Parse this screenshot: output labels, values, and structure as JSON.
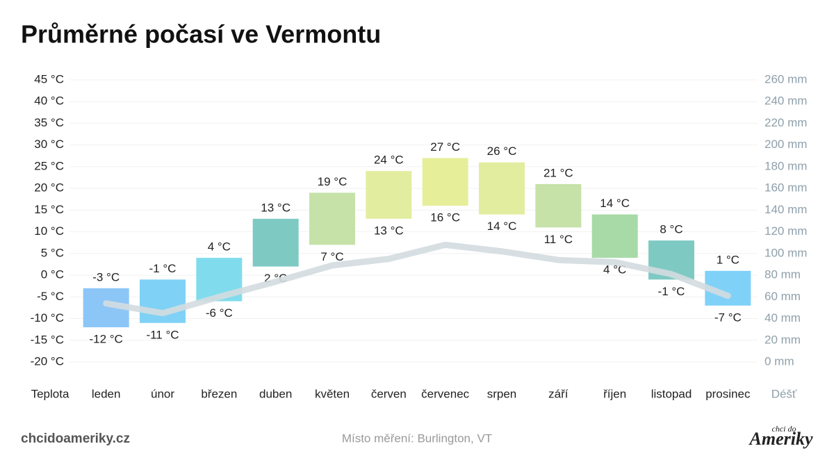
{
  "chart_data": {
    "type": "range-bar",
    "title": "Průměrné počasí ve Vermontu",
    "x_label": "Teplota",
    "y2_label": "Déšť",
    "categories": [
      "leden",
      "únor",
      "březen",
      "duben",
      "květen",
      "červen",
      "červenec",
      "srpen",
      "září",
      "říjen",
      "listopad",
      "prosinec"
    ],
    "high": {
      "values": [
        -3,
        -1,
        4,
        13,
        19,
        24,
        27,
        26,
        21,
        14,
        8,
        1
      ],
      "value_labels": [
        "-3 °C",
        "-1 °C",
        "4 °C",
        "13 °C",
        "19 °C",
        "24 °C",
        "27 °C",
        "26 °C",
        "21 °C",
        "14 °C",
        "8 °C",
        "1 °C"
      ]
    },
    "low": {
      "values": [
        -12,
        -11,
        -6,
        2,
        7,
        13,
        16,
        14,
        11,
        4,
        -1,
        -7
      ],
      "value_labels": [
        "-12 °C",
        "-11 °C",
        "-6 °C",
        "2 °C",
        "7 °C",
        "13 °C",
        "16 °C",
        "14 °C",
        "11 °C",
        "4 °C",
        "-1 °C",
        "-7 °C"
      ]
    },
    "colors": [
      "#8cc6f7",
      "#7fd1f6",
      "#80dcec",
      "#7ecac3",
      "#c6e2a8",
      "#e2ed9f",
      "#e7ee9a",
      "#e2ed9f",
      "#c6e2a8",
      "#a7daa7",
      "#7ecac3",
      "#7fd1f8"
    ],
    "rain": {
      "values": [
        54,
        45,
        60,
        74,
        89,
        95,
        108,
        102,
        94,
        92,
        81,
        61
      ],
      "color": "#d3dce0",
      "axis": "y2"
    },
    "ylim": [
      -20,
      45
    ],
    "yticks": [
      {
        "value": -20,
        "label": "-20 °C"
      },
      {
        "value": -15,
        "label": "-15 °C"
      },
      {
        "value": -10,
        "label": "-10 °C"
      },
      {
        "value": -5,
        "label": "-5 °C"
      },
      {
        "value": 0,
        "label": "0 °C"
      },
      {
        "value": 5,
        "label": "5 °C"
      },
      {
        "value": 10,
        "label": "10 °C"
      },
      {
        "value": 15,
        "label": "15 °C"
      },
      {
        "value": 20,
        "label": "20 °C"
      },
      {
        "value": 25,
        "label": "25 °C"
      },
      {
        "value": 30,
        "label": "30 °C"
      },
      {
        "value": 35,
        "label": "35 °C"
      },
      {
        "value": 40,
        "label": "40 °C"
      },
      {
        "value": 45,
        "label": "45 °C"
      }
    ],
    "y2lim": [
      0,
      260
    ],
    "y2ticks": [
      {
        "value": 0,
        "label": "0 mm"
      },
      {
        "value": 20,
        "label": "20 mm"
      },
      {
        "value": 40,
        "label": "40 mm"
      },
      {
        "value": 60,
        "label": "60 mm"
      },
      {
        "value": 80,
        "label": "80 mm"
      },
      {
        "value": 100,
        "label": "100 mm"
      },
      {
        "value": 120,
        "label": "120 mm"
      },
      {
        "value": 140,
        "label": "140 mm"
      },
      {
        "value": 160,
        "label": "160 mm"
      },
      {
        "value": 180,
        "label": "180 mm"
      },
      {
        "value": 200,
        "label": "200 mm"
      },
      {
        "value": 220,
        "label": "220 mm"
      },
      {
        "value": 240,
        "label": "240 mm"
      },
      {
        "value": 260,
        "label": "260 mm"
      }
    ],
    "grid": true
  },
  "footer": {
    "site": "chcidoameriky.cz",
    "note": "Místo měření: Burlington, VT",
    "logo_top": "chci do",
    "logo_main": "Ameriky"
  }
}
